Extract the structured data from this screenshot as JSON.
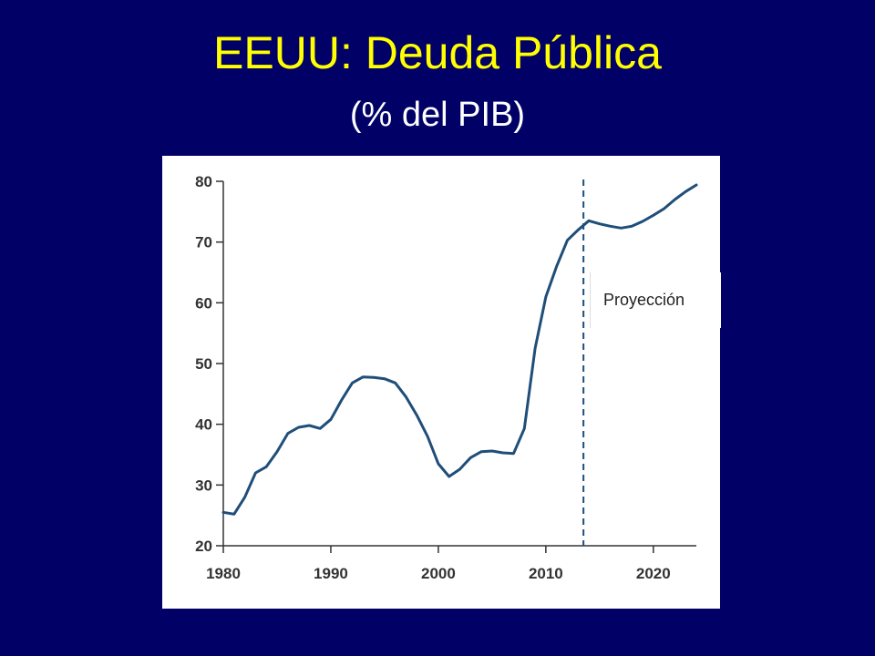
{
  "slide": {
    "title": "EEUU: Deuda Pública",
    "subtitle": "(% del PIB)"
  },
  "chart_data": {
    "type": "line",
    "title": "",
    "xlabel": "",
    "ylabel": "",
    "xlim": [
      1980,
      2024
    ],
    "ylim": [
      20,
      80
    ],
    "x_ticks": [
      1980,
      1990,
      2000,
      2010,
      2020
    ],
    "y_ticks": [
      20,
      30,
      40,
      50,
      60,
      70,
      80
    ],
    "grid": false,
    "line_color": "#1f4e79",
    "projection_start": 2013.5,
    "annotation": "Proyección",
    "series": [
      {
        "x": [
          1980,
          1981,
          1982,
          1983,
          1984,
          1985,
          1986,
          1987,
          1988,
          1989,
          1990,
          1991,
          1992,
          1993,
          1994,
          1995,
          1996,
          1997,
          1998,
          1999,
          2000,
          2001,
          2002,
          2003,
          2004,
          2005,
          2006,
          2007,
          2008,
          2009,
          2010,
          2011,
          2012,
          2013,
          2014,
          2015,
          2016,
          2017,
          2018,
          2019,
          2020,
          2021,
          2022,
          2023,
          2024
        ],
        "values": [
          25.5,
          25.2,
          28.0,
          32.0,
          33.0,
          35.5,
          38.5,
          39.5,
          39.8,
          39.3,
          40.8,
          44.0,
          46.8,
          47.8,
          47.7,
          47.5,
          46.8,
          44.5,
          41.5,
          38.0,
          33.5,
          31.4,
          32.6,
          34.5,
          35.5,
          35.6,
          35.3,
          35.2,
          39.3,
          52.5,
          61.0,
          66.0,
          70.3,
          72.0,
          73.5,
          73.0,
          72.6,
          72.3,
          72.6,
          73.4,
          74.4,
          75.5,
          77.0,
          78.3,
          79.4
        ]
      }
    ]
  }
}
